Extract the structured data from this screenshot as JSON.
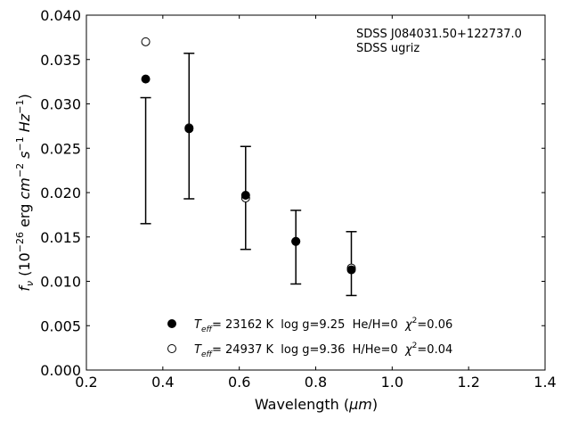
{
  "chart_data": {
    "type": "scatter",
    "xlabel_main": "Wavelength (",
    "xlabel_unit": "μm",
    "xlabel_end": ")",
    "ylabel": {
      "f": "f",
      "nu": "ν",
      "open": " (10",
      "exp1": "−26",
      "erg": " erg ",
      "cm": "cm",
      "exp2": "−2",
      "s": " s",
      "exp3": "−1",
      "hz": " Hz",
      "exp4": "−1",
      "close": ")"
    },
    "xlim": [
      0.2,
      1.4
    ],
    "ylim": [
      0.0,
      0.04
    ],
    "xticks": [
      "0.2",
      "0.4",
      "0.6",
      "0.8",
      "1.0",
      "1.2",
      "1.4"
    ],
    "yticks": [
      "0.000",
      "0.005",
      "0.010",
      "0.015",
      "0.020",
      "0.025",
      "0.030",
      "0.035",
      "0.040"
    ],
    "annotation": [
      "SDSS J084031.50+122737.0",
      "SDSS ugriz"
    ],
    "observed": [
      {
        "x": 0.3551,
        "ylow": 0.0165,
        "yhigh": 0.0307
      },
      {
        "x": 0.4686,
        "ylow": 0.0193,
        "yhigh": 0.0357
      },
      {
        "x": 0.6166,
        "ylow": 0.0136,
        "yhigh": 0.0252
      },
      {
        "x": 0.748,
        "ylow": 0.0097,
        "yhigh": 0.018
      },
      {
        "x": 0.8932,
        "ylow": 0.0084,
        "yhigh": 0.0156
      }
    ],
    "series": [
      {
        "marker": "filled",
        "x": [
          0.3551,
          0.4686,
          0.6166,
          0.748,
          0.8932
        ],
        "y": [
          0.0328,
          0.0272,
          0.0197,
          0.0145,
          0.0113
        ]
      },
      {
        "marker": "open",
        "x": [
          0.3551,
          0.4686,
          0.6166,
          0.748,
          0.8932
        ],
        "y": [
          0.037,
          0.0273,
          0.0194,
          0.0145,
          0.0115
        ]
      }
    ],
    "legend": [
      {
        "marker": "filled",
        "teff": "T",
        "eff": "eff",
        "text": "= 23162 K  log g=9.25  He/H=0  ",
        "chi": "χ",
        "sq": "2",
        "chival": "=0.06"
      },
      {
        "marker": "open",
        "teff": "T",
        "eff": "eff",
        "text": "= 24937 K  log g=9.36  H/He=0  ",
        "chi": "χ",
        "sq": "2",
        "chival": "=0.04"
      }
    ],
    "legend_position": "lower-center",
    "grid": false
  }
}
